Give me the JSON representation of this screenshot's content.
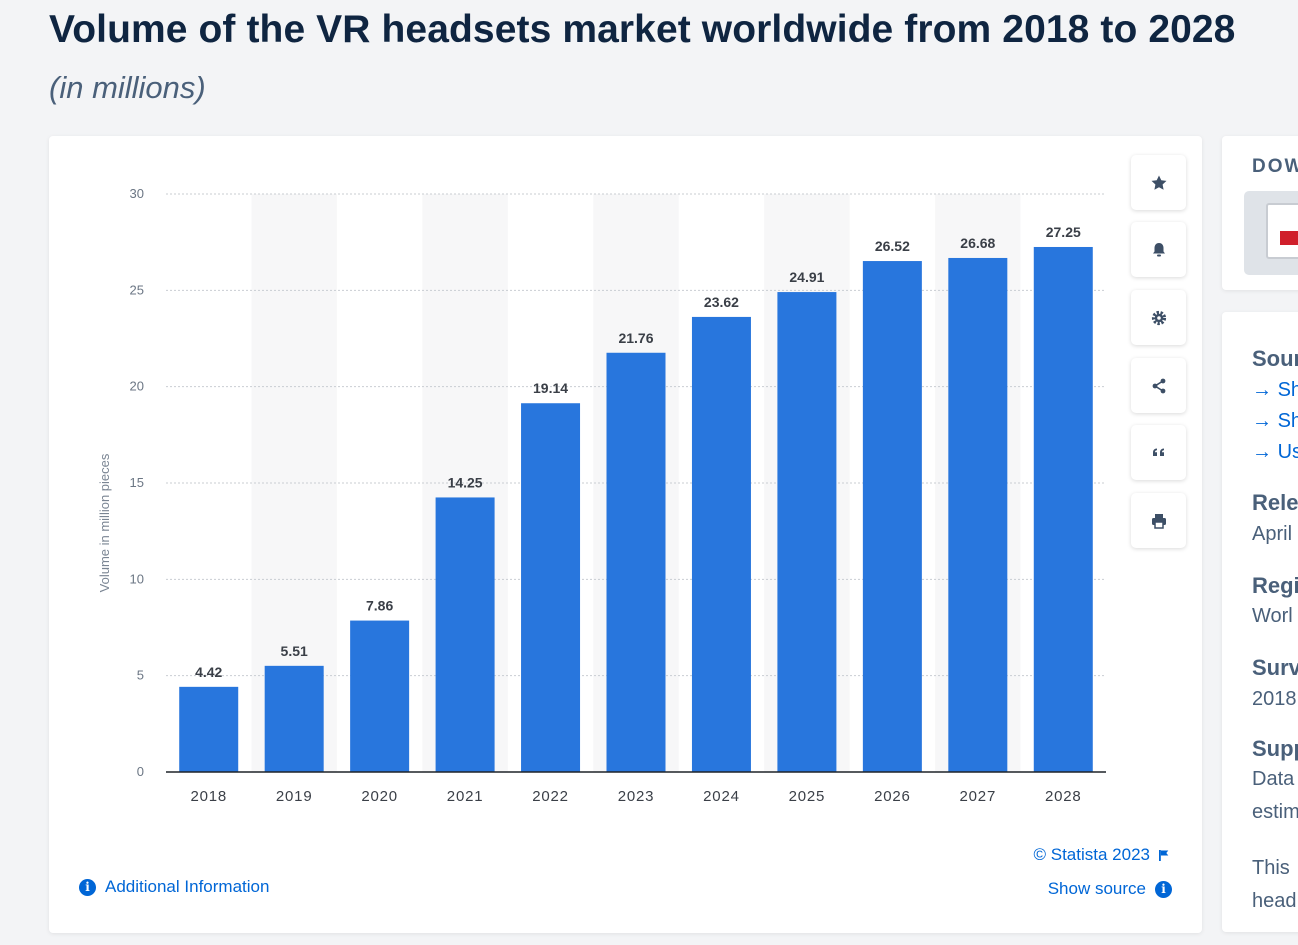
{
  "page": {
    "title": "Volume of the VR headsets market worldwide from 2018 to 2028",
    "subtitle": "(in millions)"
  },
  "chart_data": {
    "type": "bar",
    "title": "Volume of the VR headsets market worldwide from 2018 to 2028",
    "subtitle": "(in millions)",
    "xlabel": "",
    "ylabel": "Volume in million pieces",
    "categories": [
      "2018",
      "2019",
      "2020",
      "2021",
      "2022",
      "2023",
      "2024",
      "2025",
      "2026",
      "2027",
      "2028"
    ],
    "values": [
      4.42,
      5.51,
      7.86,
      14.25,
      19.14,
      21.76,
      23.62,
      24.91,
      26.52,
      26.68,
      27.25
    ],
    "data_labels": [
      "4.42",
      "5.51",
      "7.86",
      "14.25",
      "19.14",
      "21.76",
      "23.62",
      "24.91",
      "26.52",
      "26.68",
      "27.25"
    ],
    "ylim": [
      0,
      30
    ],
    "yticks": [
      0,
      5,
      10,
      15,
      20,
      25,
      30
    ],
    "grid": true,
    "bar_color": "#2876dd"
  },
  "toolbar": [
    {
      "name": "favorite-button",
      "icon": "star-icon"
    },
    {
      "name": "alert-button",
      "icon": "bell-icon"
    },
    {
      "name": "settings-button",
      "icon": "gear-icon"
    },
    {
      "name": "share-button",
      "icon": "share-icon"
    },
    {
      "name": "cite-button",
      "icon": "quote-icon"
    },
    {
      "name": "print-button",
      "icon": "printer-icon"
    }
  ],
  "footer": {
    "copyright": "© Statista 2023",
    "show_source": "Show source",
    "additional_info": "Additional Information"
  },
  "sidebar": {
    "download_label": "DOW",
    "source_heading": "Sour",
    "source_links": [
      "Sh",
      "Sh",
      "Us"
    ],
    "release_heading": "Rele",
    "release_value": "April",
    "region_heading": "Regi",
    "region_value": "Worl",
    "survey_heading": "Surv",
    "survey_value": "2018",
    "supplementary_heading": "Supp",
    "supplementary_line1": "Data",
    "supplementary_line2": "estim",
    "note_line1": "This",
    "note_line2": "head"
  },
  "colors": {
    "accent": "#0066d6",
    "bar": "#2876dd",
    "title": "#0f2541",
    "muted": "#4a607a"
  }
}
